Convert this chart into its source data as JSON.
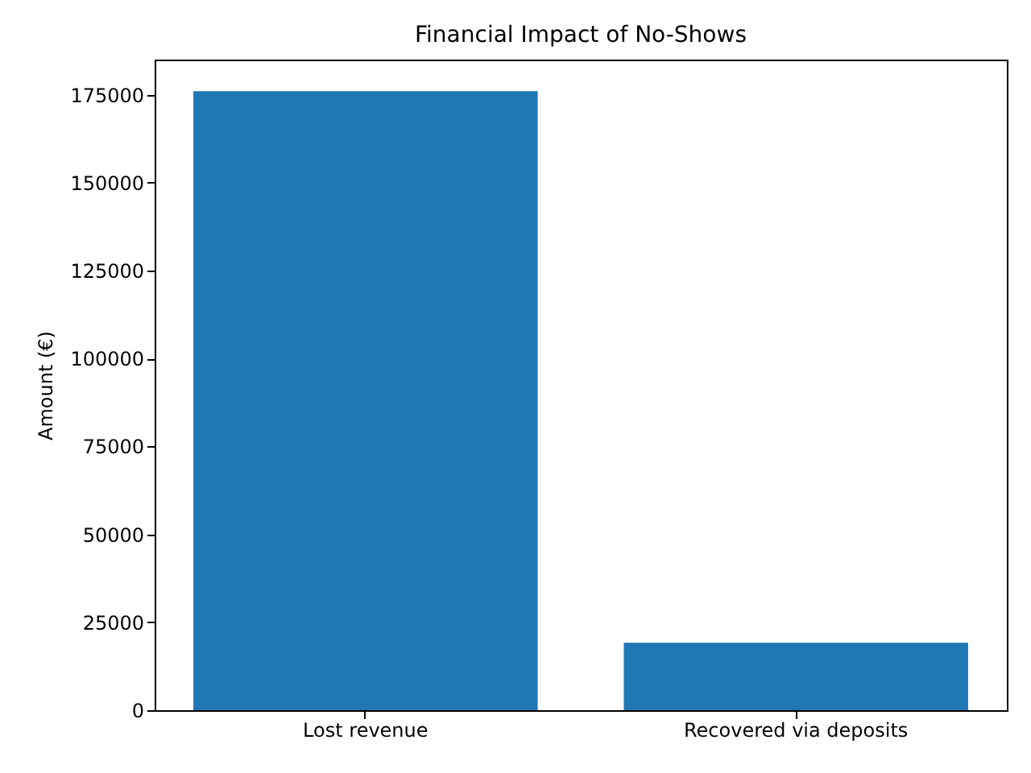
{
  "chart_data": {
    "type": "bar",
    "title": "Financial Impact of No-Shows",
    "ylabel": "Amount (€)",
    "categories": [
      "Lost revenue",
      "Recovered via deposits"
    ],
    "values": [
      176000,
      19200
    ],
    "color": "#1f77b4",
    "ylim": [
      0,
      185000
    ],
    "yticks": [
      0,
      25000,
      50000,
      75000,
      100000,
      125000,
      150000,
      175000
    ],
    "grid": false
  }
}
